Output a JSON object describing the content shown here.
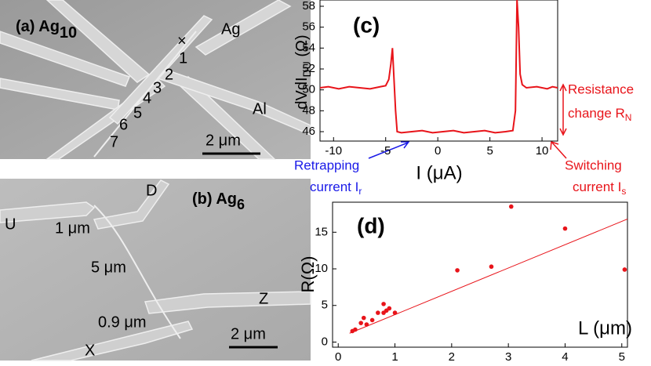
{
  "panels": {
    "a": {
      "label": "(a) Ag",
      "label_sub": "10",
      "lead_top": "Ag",
      "lead_right": "Al",
      "cross": "×",
      "numbers": [
        "1",
        "2",
        "3",
        "4",
        "5",
        "6",
        "7"
      ],
      "scale": "2 μm"
    },
    "b": {
      "label": "(b) Ag",
      "label_sub": "6",
      "contacts": [
        "U",
        "D",
        "Z",
        "X"
      ],
      "lengths": [
        "1 μm",
        "5 μm",
        "0.9 μm"
      ],
      "scale": "2 μm"
    }
  },
  "chart_data": [
    {
      "type": "line",
      "panel_label": "(c)",
      "ylabel": {
        "main": "dVdI",
        "sub": "DU",
        "unit": " (Ω)"
      },
      "xlabel": "I (μA)",
      "annotations": {
        "resistance": {
          "line1": "Resistance",
          "line2": "change R",
          "sub": "N"
        },
        "retrapping": {
          "line1": "Retrapping",
          "line2": "current I",
          "sub": "r"
        },
        "switching": {
          "line1": "Switching",
          "line2": "current I",
          "sub": "s"
        }
      },
      "color": "#e8141a",
      "x": [
        -11.3,
        -10.5,
        -9.5,
        -8.5,
        -7.5,
        -6.5,
        -5.5,
        -5,
        -4.7,
        -4.5,
        -4.35,
        -4.2,
        -4.05,
        -3.9,
        -3.5,
        -2.5,
        -1.5,
        -0.5,
        0.5,
        1.5,
        2.5,
        3.5,
        4.5,
        5.5,
        6.5,
        7.2,
        7.45,
        7.6,
        7.75,
        7.9,
        8.1,
        8.5,
        9.5,
        10.5,
        11,
        11.5
      ],
      "values": [
        50.2,
        50.3,
        50.1,
        50.3,
        50.2,
        50.1,
        50.3,
        50.4,
        51,
        52.5,
        54,
        51,
        48,
        46,
        45.9,
        46,
        46.1,
        45.9,
        46,
        46.1,
        45.9,
        46,
        46.1,
        45.9,
        46,
        46.1,
        48,
        58.6,
        56,
        51.5,
        50.5,
        50.2,
        50.3,
        50.1,
        50.3,
        50.2
      ],
      "xlim": [
        -11.3,
        11.5
      ],
      "xticks": [
        -10,
        -5,
        0,
        5,
        10
      ],
      "ylim": [
        45.1,
        58.6
      ],
      "yticks": [
        46,
        48,
        50,
        52,
        54,
        56,
        58
      ]
    },
    {
      "type": "scatter",
      "panel_label": "(d)",
      "ylabel": "R(Ω)",
      "xlabel": "L (μm)",
      "color": "#e8141a",
      "x": [
        0.25,
        0.3,
        0.4,
        0.45,
        0.5,
        0.6,
        0.7,
        0.8,
        0.8,
        0.85,
        0.9,
        1.0,
        2.1,
        2.7,
        3.05,
        4.0,
        5.05
      ],
      "values": [
        1.5,
        1.7,
        2.6,
        3.3,
        2.4,
        3.0,
        4.0,
        4.0,
        5.2,
        4.3,
        4.6,
        4.0,
        9.8,
        10.3,
        18.5,
        15.5,
        9.9
      ],
      "fit": {
        "x": [
          0.2,
          5.1
        ],
        "values": [
          1.2,
          16.8
        ]
      },
      "xlim": [
        -0.1,
        5.1
      ],
      "xticks": [
        0,
        1,
        2,
        3,
        4,
        5
      ],
      "ylim": [
        -0.7,
        19.1
      ],
      "yticks": [
        0,
        5,
        10,
        15
      ]
    }
  ]
}
